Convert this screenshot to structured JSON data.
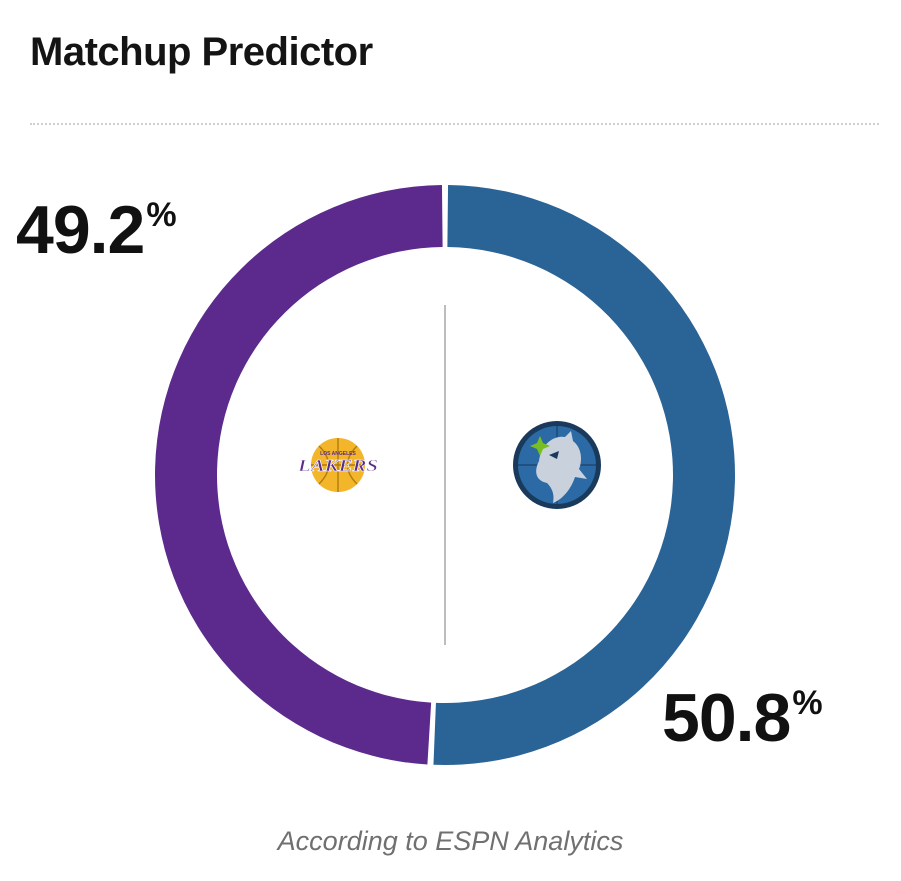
{
  "title": "Matchup Predictor",
  "caption": "According to ESPN Analytics",
  "teams": {
    "left": {
      "name": "Lakers",
      "logo_text_small": "LOS ANGELES",
      "logo_text": "LAKERS",
      "percent_text": "49.2",
      "percent_sign": "%",
      "color": "#5c2a8c",
      "logo_colors": {
        "ball": "#f3b52a",
        "text": "#5b2b88"
      }
    },
    "right": {
      "name": "Timberwolves",
      "percent_text": "50.8",
      "percent_sign": "%",
      "color": "#2a6396",
      "logo_colors": {
        "outer": "#1a3a5c",
        "inner": "#2b6aa4",
        "star": "#78be20"
      }
    }
  },
  "chart_data": {
    "type": "pie",
    "style": "donut",
    "slices": [
      {
        "label": "Lakers",
        "value": 49.2,
        "color": "#5c2a8c"
      },
      {
        "label": "Timberwolves",
        "value": 50.8,
        "color": "#2a6396"
      }
    ],
    "unit": "%"
  }
}
